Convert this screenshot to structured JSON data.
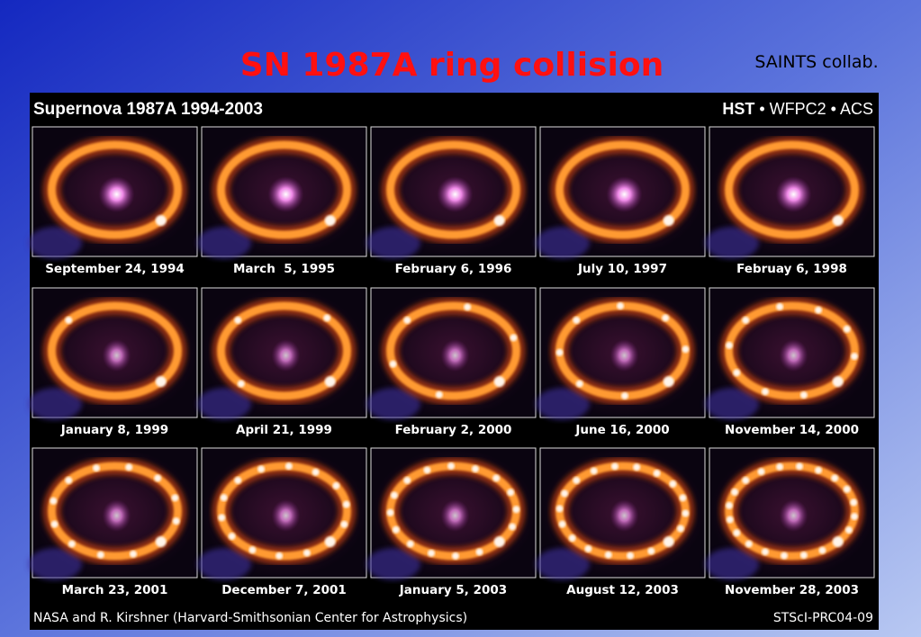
{
  "title": "SN 1987A ring collision",
  "credit": "SAINTS collab.",
  "panel": {
    "title": "Supernova 1987A 1994-2003",
    "header_right": {
      "bold": "HST",
      "rest": " • WFPC2 • ACS"
    },
    "dates": [
      "September 24, 1994",
      "March  5, 1995",
      "February 6, 1996",
      "July 10, 1997",
      "Februay 6, 1998",
      "January 8, 1999",
      "April 21, 1999",
      "February 2, 2000",
      "June 16, 2000",
      "November 14, 2000",
      "March 23, 2001",
      "December 7, 2001",
      "January 5, 2003",
      "August 12, 2003",
      "November 28, 2003"
    ],
    "footer_left": "NASA and R. Kirshner (Harvard-Smithsonian Center for Astrophysics)",
    "footer_right": "STScI-PRC04-09"
  }
}
